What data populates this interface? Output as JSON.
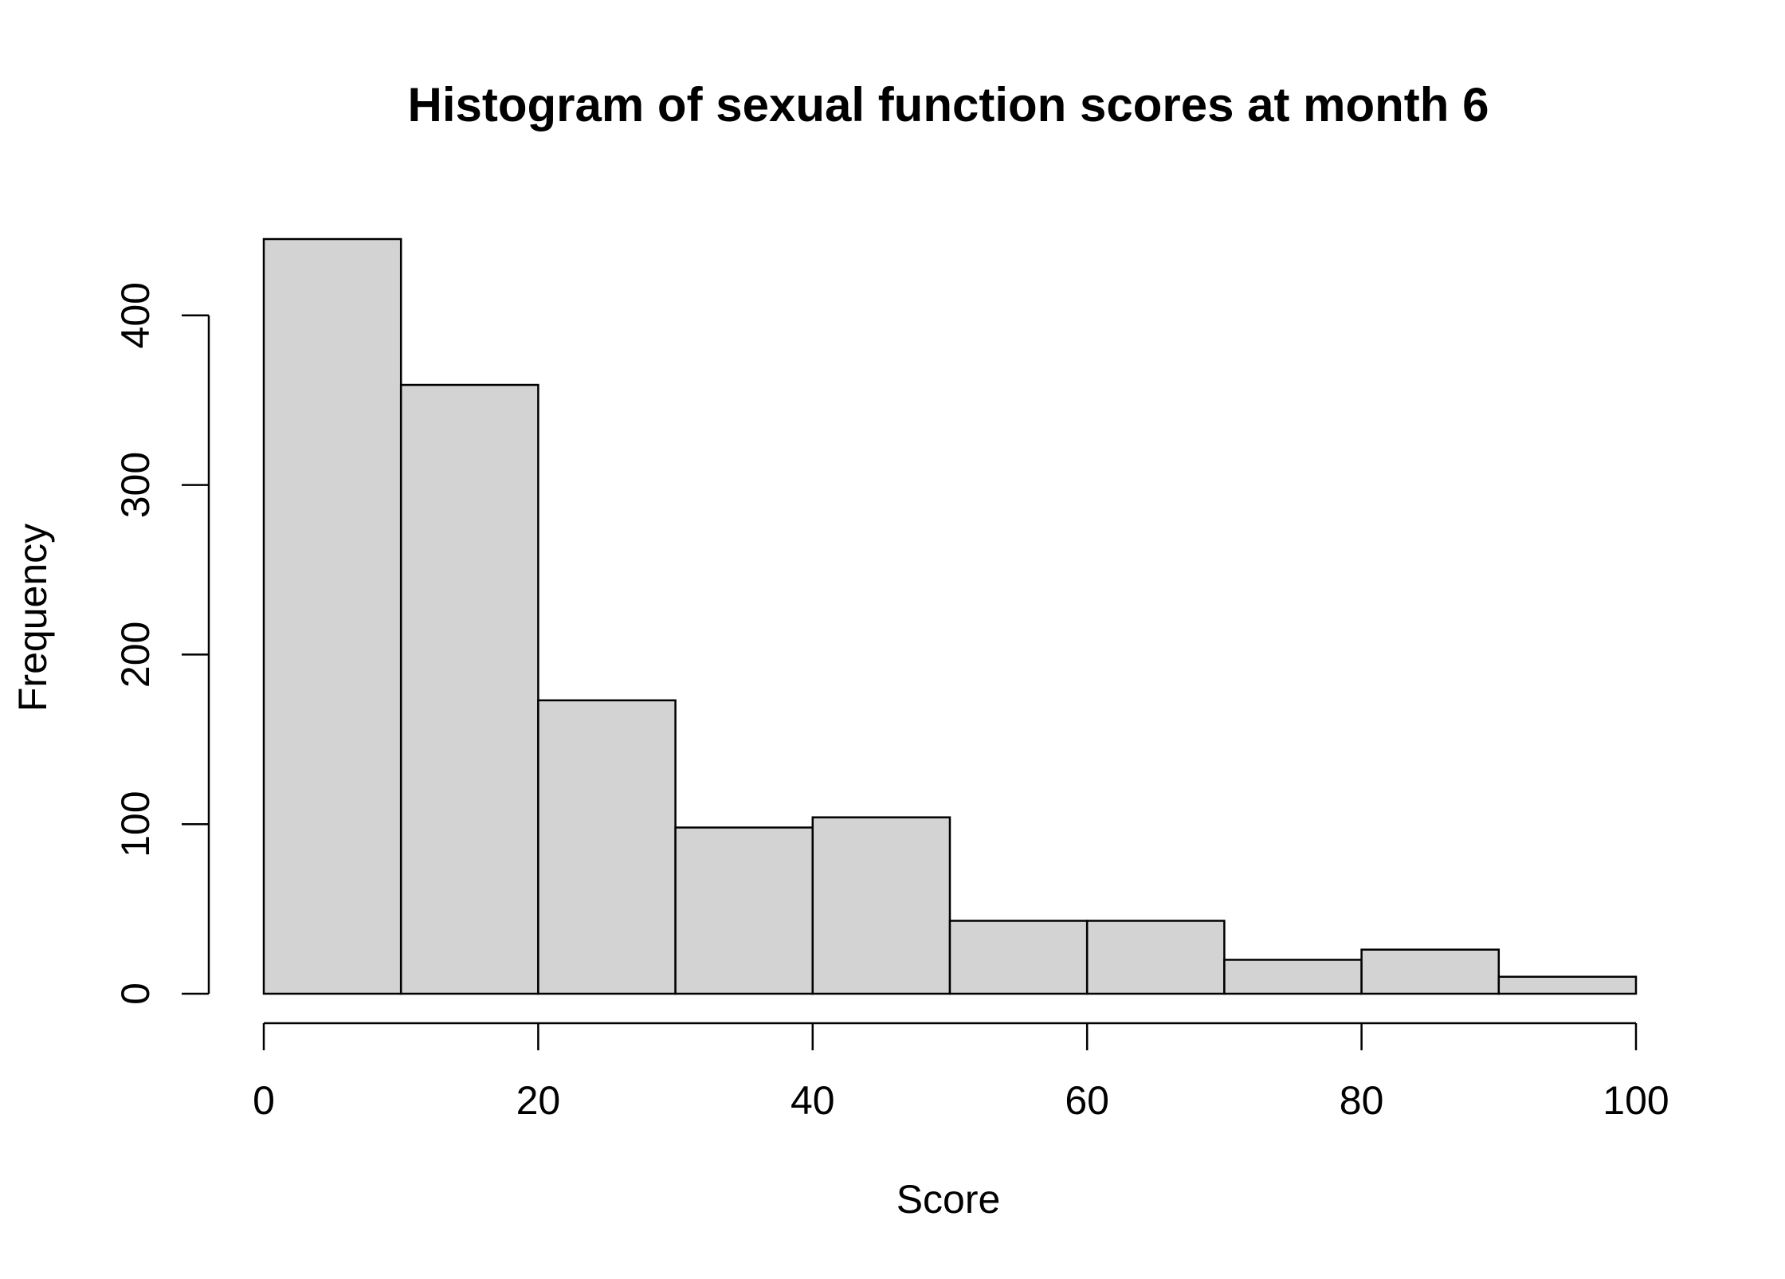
{
  "chart_data": {
    "type": "bar",
    "title": "Histogram of sexual function scores at month 6",
    "xlabel": "Score",
    "ylabel": "Frequency",
    "bins": [
      {
        "start": 0,
        "end": 10,
        "count": 445
      },
      {
        "start": 10,
        "end": 20,
        "count": 359
      },
      {
        "start": 20,
        "end": 30,
        "count": 173
      },
      {
        "start": 30,
        "end": 40,
        "count": 98
      },
      {
        "start": 40,
        "end": 50,
        "count": 104
      },
      {
        "start": 50,
        "end": 60,
        "count": 43
      },
      {
        "start": 60,
        "end": 70,
        "count": 43
      },
      {
        "start": 70,
        "end": 80,
        "count": 20
      },
      {
        "start": 80,
        "end": 90,
        "count": 26
      },
      {
        "start": 90,
        "end": 100,
        "count": 10
      }
    ],
    "xlim": [
      0,
      100
    ],
    "ylim": [
      0,
      445
    ],
    "xticks": [
      0,
      20,
      40,
      60,
      80,
      100
    ],
    "yticks": [
      0,
      100,
      200,
      300,
      400
    ],
    "grid": false,
    "legend": "none",
    "colors": {
      "bar_fill": "#d3d3d3",
      "bar_stroke": "#000000",
      "axis": "#000000",
      "background": "#ffffff"
    }
  }
}
